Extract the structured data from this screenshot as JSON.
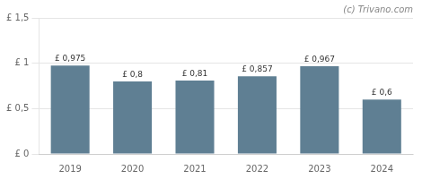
{
  "chart_data": {
    "type": "bar",
    "categories": [
      "2019",
      "2020",
      "2021",
      "2022",
      "2023",
      "2024"
    ],
    "values": [
      0.975,
      0.8,
      0.81,
      0.857,
      0.967,
      0.6
    ],
    "value_labels": [
      "£ 0,975",
      "£ 0,8",
      "£ 0,81",
      "£ 0,857",
      "£ 0,967",
      "£ 0,6"
    ],
    "data_labels": true,
    "color": "#5f7f93",
    "ylim": [
      0,
      1.5
    ],
    "yticks": [
      {
        "value": 0,
        "label": "£ 0"
      },
      {
        "value": 0.5,
        "label": "£ 0,5"
      },
      {
        "value": 1.0,
        "label": "£ 1"
      },
      {
        "value": 1.5,
        "label": "£ 1,5"
      }
    ],
    "grid": true,
    "annotations": [
      "(c) Trivano.com"
    ]
  }
}
